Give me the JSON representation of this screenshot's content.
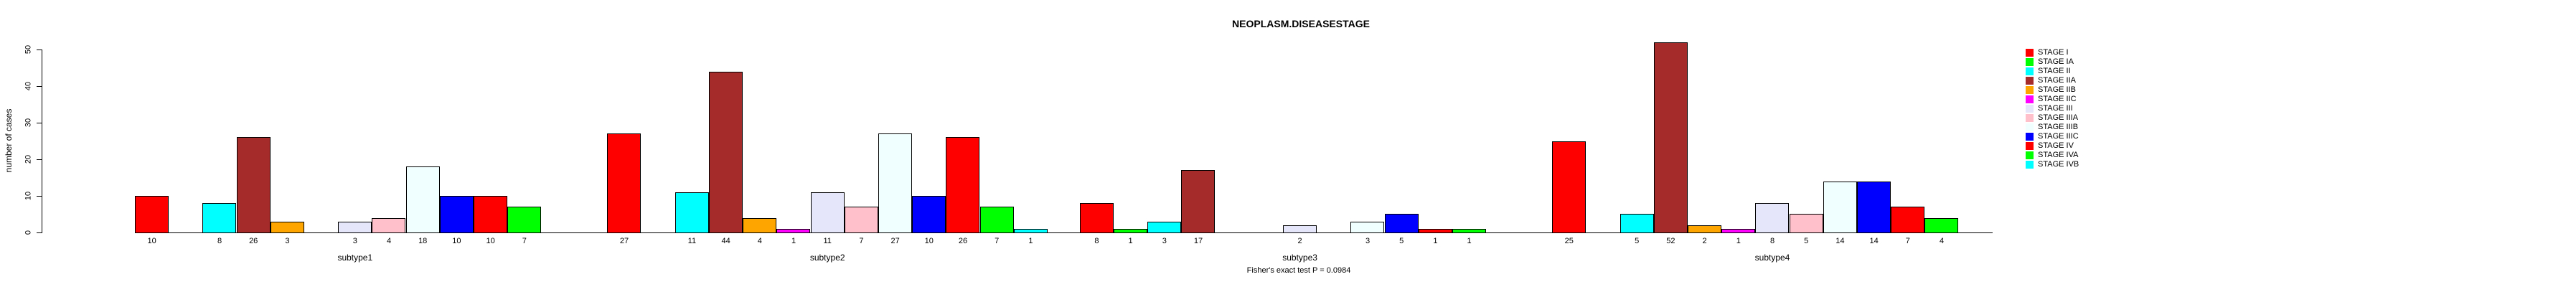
{
  "chart_data": {
    "type": "bar",
    "title": "NEOPLASM.DISEASESTAGE",
    "ylabel": "number of cases",
    "footer": "Fisher's exact test P = 0.0984",
    "ylim": [
      0,
      50
    ],
    "yticks": [
      0,
      10,
      20,
      30,
      40,
      50
    ],
    "grid": false,
    "legend_position": "right",
    "categories": [
      "subtype1",
      "subtype2",
      "subtype3",
      "subtype4"
    ],
    "stages": [
      {
        "name": "STAGE I",
        "color": "#FF0000"
      },
      {
        "name": "STAGE IA",
        "color": "#00FF00"
      },
      {
        "name": "STAGE II",
        "color": "#00FFFF"
      },
      {
        "name": "STAGE IIA",
        "color": "#A52A2A"
      },
      {
        "name": "STAGE IIB",
        "color": "#FFA500"
      },
      {
        "name": "STAGE IIC",
        "color": "#FF00FF"
      },
      {
        "name": "STAGE III",
        "color": "#E6E6FA"
      },
      {
        "name": "STAGE IIIA",
        "color": "#FFC0CB"
      },
      {
        "name": "STAGE IIIB",
        "color": "#F0FFFF"
      },
      {
        "name": "STAGE IIIC",
        "color": "#0000FF"
      },
      {
        "name": "STAGE IV",
        "color": "#FF0000"
      },
      {
        "name": "STAGE IVA",
        "color": "#00FF00"
      },
      {
        "name": "STAGE IVB",
        "color": "#00FFFF"
      }
    ],
    "series": [
      {
        "name": "subtype1",
        "values": [
          10,
          0,
          8,
          26,
          3,
          0,
          3,
          4,
          18,
          10,
          10,
          7,
          0
        ]
      },
      {
        "name": "subtype2",
        "values": [
          27,
          0,
          11,
          44,
          4,
          1,
          11,
          7,
          27,
          10,
          26,
          7,
          1
        ]
      },
      {
        "name": "subtype3",
        "values": [
          8,
          1,
          3,
          17,
          0,
          0,
          2,
          0,
          3,
          5,
          1,
          1,
          0
        ]
      },
      {
        "name": "subtype4",
        "values": [
          25,
          0,
          5,
          52,
          2,
          1,
          8,
          5,
          14,
          14,
          7,
          4,
          0
        ]
      }
    ]
  }
}
